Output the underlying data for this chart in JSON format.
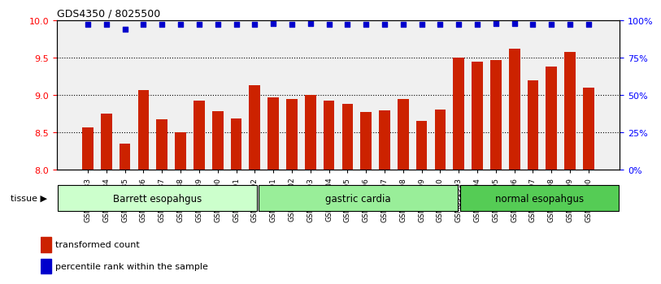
{
  "title": "GDS4350 / 8025500",
  "samples": [
    "GSM851983",
    "GSM851984",
    "GSM851985",
    "GSM851986",
    "GSM851987",
    "GSM851988",
    "GSM851989",
    "GSM851990",
    "GSM851991",
    "GSM851992",
    "GSM852001",
    "GSM852002",
    "GSM852003",
    "GSM852004",
    "GSM852005",
    "GSM852006",
    "GSM852007",
    "GSM852008",
    "GSM852009",
    "GSM852010",
    "GSM851993",
    "GSM851994",
    "GSM851995",
    "GSM851996",
    "GSM851997",
    "GSM851998",
    "GSM851999",
    "GSM852000"
  ],
  "bar_values": [
    8.57,
    8.75,
    8.35,
    9.07,
    8.67,
    8.5,
    8.92,
    8.78,
    8.68,
    9.13,
    8.97,
    8.95,
    9.0,
    8.92,
    8.88,
    8.77,
    8.79,
    8.95,
    8.65,
    8.8,
    9.5,
    9.45,
    9.47,
    9.62,
    9.2,
    9.38,
    9.58,
    9.1
  ],
  "percentile_values": [
    97,
    97,
    94,
    97,
    97,
    97,
    97,
    97,
    97,
    97,
    98,
    97,
    98,
    97,
    97,
    97,
    97,
    97,
    97,
    97,
    97,
    97,
    98,
    98,
    97,
    97,
    97,
    97
  ],
  "groups": [
    {
      "label": "Barrett esopahgus",
      "start": 0,
      "end": 10,
      "color": "#ccffcc"
    },
    {
      "label": "gastric cardia",
      "start": 10,
      "end": 20,
      "color": "#99ee99"
    },
    {
      "label": "normal esopahgus",
      "start": 20,
      "end": 28,
      "color": "#55cc55"
    }
  ],
  "ylim_left": [
    8.0,
    10.0
  ],
  "ylim_right": [
    0,
    100
  ],
  "yticks_left": [
    8.0,
    8.5,
    9.0,
    9.5,
    10.0
  ],
  "yticks_right": [
    0,
    25,
    50,
    75,
    100
  ],
  "bar_color": "#cc2200",
  "dot_color": "#0000cc",
  "bar_bottom": 8.0,
  "legend_items": [
    {
      "label": "transformed count",
      "color": "#cc2200",
      "marker": "s"
    },
    {
      "label": "percentile rank within the sample",
      "color": "#0000cc",
      "marker": "s"
    }
  ],
  "tissue_label": "tissue",
  "background_color": "#ffffff",
  "plot_bg_color": "#f0f0f0"
}
